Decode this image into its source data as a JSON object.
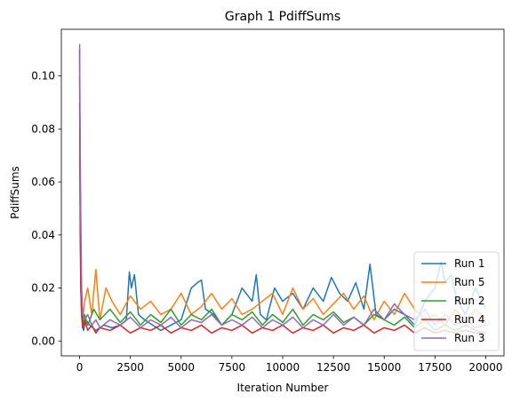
{
  "chart_data": {
    "type": "line",
    "title": "Graph 1 PdiffSums",
    "xlabel": "Iteration Number",
    "ylabel": "PdiffSums",
    "xlim": [
      -900,
      20900
    ],
    "ylim": [
      -0.0056,
      0.1176
    ],
    "x_ticks": [
      0,
      2500,
      5000,
      7500,
      10000,
      12500,
      15000,
      17500,
      20000
    ],
    "x_tick_labels": [
      "0",
      "2500",
      "5000",
      "7500",
      "10000",
      "12500",
      "15000",
      "17500",
      "20000"
    ],
    "y_ticks": [
      0.0,
      0.02,
      0.04,
      0.06,
      0.08,
      0.1
    ],
    "y_tick_labels": [
      "0.00",
      "0.02",
      "0.04",
      "0.06",
      "0.08",
      "0.10"
    ],
    "grid": false,
    "legend_position": "lower-right",
    "series": [
      {
        "name": "Run 1",
        "color": "#1f77b4",
        "x": [
          0,
          30,
          60,
          100,
          150,
          200,
          300,
          500,
          800,
          1200,
          1600,
          2000,
          2300,
          2450,
          2550,
          2700,
          2900,
          3200,
          3600,
          4000,
          4500,
          5000,
          5500,
          5800,
          6000,
          6200,
          6600,
          7000,
          7500,
          8000,
          8500,
          8700,
          8900,
          9200,
          9600,
          10000,
          10500,
          11000,
          11500,
          12000,
          12400,
          12800,
          13200,
          13600,
          14000,
          14300,
          14600,
          15000,
          15500,
          16000,
          16500,
          17000,
          17500,
          17800,
          18000,
          18300,
          18600,
          19000,
          19500,
          20000
        ],
        "y": [
          0.09,
          0.06,
          0.02,
          0.01,
          0.005,
          0.004,
          0.008,
          0.006,
          0.004,
          0.006,
          0.005,
          0.006,
          0.008,
          0.026,
          0.02,
          0.025,
          0.01,
          0.008,
          0.006,
          0.004,
          0.006,
          0.008,
          0.02,
          0.022,
          0.023,
          0.012,
          0.01,
          0.006,
          0.01,
          0.02,
          0.015,
          0.025,
          0.01,
          0.008,
          0.02,
          0.015,
          0.018,
          0.012,
          0.02,
          0.015,
          0.024,
          0.018,
          0.015,
          0.022,
          0.012,
          0.029,
          0.01,
          0.008,
          0.012,
          0.01,
          0.006,
          0.015,
          0.02,
          0.03,
          0.022,
          0.025,
          0.015,
          0.01,
          0.02,
          0.012
        ]
      },
      {
        "name": "Run 5",
        "color": "#ff7f0e",
        "x": [
          0,
          30,
          60,
          100,
          150,
          250,
          400,
          600,
          800,
          1000,
          1300,
          1600,
          2000,
          2500,
          3000,
          3500,
          4000,
          4500,
          5000,
          5500,
          6000,
          6500,
          7000,
          7500,
          8000,
          8500,
          9000,
          9500,
          10000,
          10500,
          11000,
          11500,
          12000,
          12500,
          13000,
          13500,
          14000,
          14500,
          15000,
          15500,
          16000,
          16500,
          17000,
          17500,
          18000,
          18500,
          19000,
          19500,
          20000
        ],
        "y": [
          0.07,
          0.05,
          0.03,
          0.012,
          0.008,
          0.015,
          0.02,
          0.01,
          0.027,
          0.008,
          0.02,
          0.015,
          0.01,
          0.017,
          0.012,
          0.015,
          0.01,
          0.012,
          0.018,
          0.01,
          0.013,
          0.018,
          0.012,
          0.016,
          0.01,
          0.012,
          0.015,
          0.018,
          0.01,
          0.02,
          0.012,
          0.016,
          0.01,
          0.014,
          0.018,
          0.012,
          0.017,
          0.008,
          0.015,
          0.01,
          0.018,
          0.012,
          0.008,
          0.01,
          0.006,
          0.012,
          0.008,
          0.012,
          0.008
        ]
      },
      {
        "name": "Run 2",
        "color": "#2ca02c",
        "x": [
          0,
          30,
          60,
          100,
          150,
          250,
          400,
          700,
          1000,
          1500,
          2000,
          2500,
          3000,
          3500,
          4000,
          4500,
          5000,
          5500,
          6000,
          6500,
          7000,
          7500,
          8000,
          8500,
          9000,
          9500,
          10000,
          10500,
          11000,
          11500,
          12000,
          12500,
          13000,
          13500,
          14000,
          14500,
          15000,
          15500,
          16000,
          16500,
          17000,
          17500,
          18000,
          18500,
          19000,
          19500,
          20000
        ],
        "y": [
          0.1,
          0.06,
          0.03,
          0.012,
          0.006,
          0.01,
          0.006,
          0.012,
          0.008,
          0.012,
          0.007,
          0.011,
          0.006,
          0.01,
          0.007,
          0.012,
          0.006,
          0.01,
          0.008,
          0.012,
          0.006,
          0.01,
          0.008,
          0.011,
          0.006,
          0.01,
          0.007,
          0.012,
          0.006,
          0.01,
          0.008,
          0.011,
          0.007,
          0.009,
          0.006,
          0.01,
          0.008,
          0.006,
          0.009,
          0.005,
          0.008,
          0.004,
          0.006,
          0.004,
          0.006,
          0.004,
          0.003
        ]
      },
      {
        "name": "Run 4",
        "color": "#d62728",
        "x": [
          0,
          30,
          60,
          100,
          150,
          250,
          400,
          600,
          800,
          1000,
          1500,
          2000,
          2500,
          3000,
          3500,
          4000,
          4500,
          5000,
          5500,
          6000,
          6500,
          7000,
          7500,
          8000,
          8500,
          9000,
          9500,
          10000,
          10500,
          11000,
          11500,
          12000,
          12500,
          13000,
          13500,
          14000,
          14500,
          15000,
          15500,
          16000,
          16500,
          17000,
          17500,
          18000,
          18500,
          19000,
          19500,
          20000
        ],
        "y": [
          0.11,
          0.039,
          0.02,
          0.01,
          0.005,
          0.008,
          0.004,
          0.006,
          0.003,
          0.005,
          0.004,
          0.006,
          0.003,
          0.005,
          0.004,
          0.006,
          0.003,
          0.005,
          0.004,
          0.006,
          0.003,
          0.005,
          0.004,
          0.006,
          0.003,
          0.005,
          0.004,
          0.006,
          0.003,
          0.005,
          0.004,
          0.006,
          0.003,
          0.005,
          0.004,
          0.006,
          0.003,
          0.005,
          0.004,
          0.006,
          0.003,
          0.005,
          0.003,
          0.004,
          0.003,
          0.004,
          0.003,
          0.003
        ]
      },
      {
        "name": "Run 3",
        "color": "#9467bd",
        "x": [
          0,
          30,
          60,
          100,
          150,
          250,
          400,
          600,
          800,
          1000,
          1500,
          2000,
          2500,
          3000,
          3500,
          4000,
          4500,
          5000,
          5500,
          6000,
          6500,
          7000,
          7500,
          8000,
          8500,
          9000,
          9500,
          10000,
          10500,
          11000,
          11500,
          12000,
          12500,
          13000,
          13500,
          14000,
          14500,
          15000,
          15500,
          16000,
          16500,
          17000,
          17500,
          18000,
          18500,
          19000,
          19500,
          20000
        ],
        "y": [
          0.112,
          0.07,
          0.045,
          0.02,
          0.01,
          0.008,
          0.01,
          0.006,
          0.008,
          0.005,
          0.008,
          0.006,
          0.009,
          0.005,
          0.008,
          0.006,
          0.009,
          0.005,
          0.008,
          0.007,
          0.01,
          0.006,
          0.008,
          0.006,
          0.009,
          0.005,
          0.008,
          0.006,
          0.009,
          0.005,
          0.008,
          0.006,
          0.01,
          0.006,
          0.009,
          0.006,
          0.012,
          0.008,
          0.014,
          0.01,
          0.008,
          0.012,
          0.006,
          0.01,
          0.006,
          0.008,
          0.005,
          0.006
        ]
      }
    ]
  }
}
